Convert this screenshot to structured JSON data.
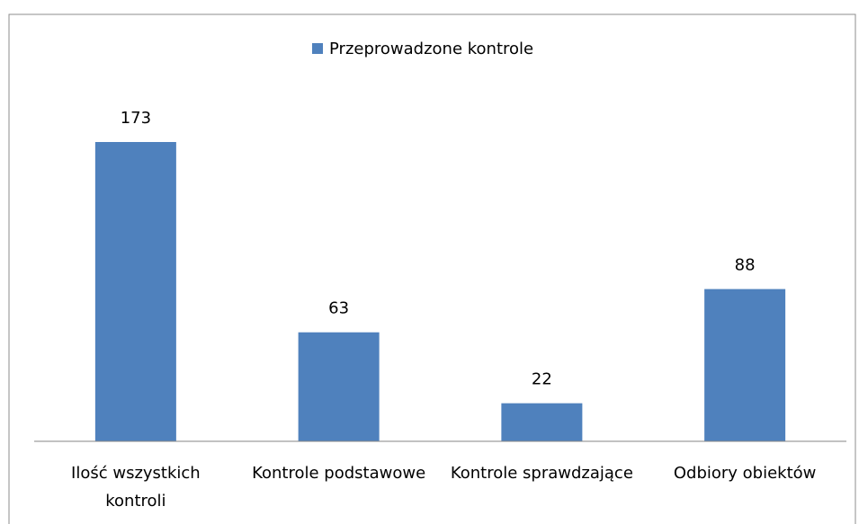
{
  "chart_data": {
    "type": "bar",
    "categories": [
      "Ilość wszystkich kontroli",
      "Kontrole podstawowe",
      "Kontrole sprawdzające",
      "Odbiory obiektów"
    ],
    "series": [
      {
        "name": "Przeprowadzone kontrole",
        "color": "#4f81bd",
        "values": [
          173,
          63,
          22,
          88
        ]
      }
    ],
    "legend": "top"
  }
}
